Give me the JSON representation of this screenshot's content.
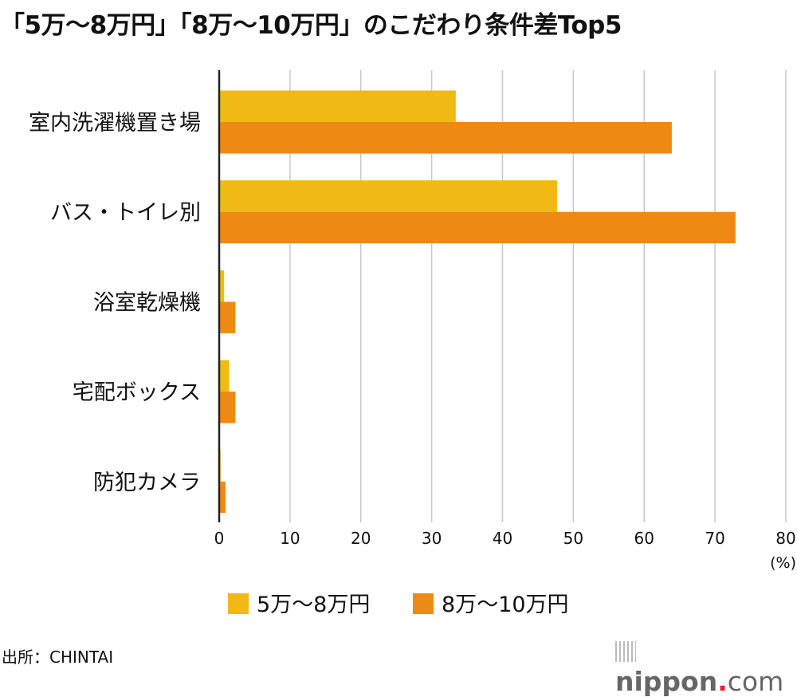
{
  "chart_data": {
    "type": "bar",
    "orientation": "horizontal",
    "title": "「5万〜8万円」「8万〜10万円」のこだわり条件差Top5",
    "categories": [
      "室内洗濯機置き場",
      "バス・トイレ別",
      "浴室乾燥機",
      "宅配ボックス",
      "防犯カメラ"
    ],
    "series": [
      {
        "name": "5万〜8万円",
        "color": "#f0b914",
        "values": [
          33.4,
          47.7,
          0.7,
          1.4,
          0.2
        ]
      },
      {
        "name": "8万〜10万円",
        "color": "#ee8a13",
        "values": [
          63.9,
          72.9,
          2.3,
          2.3,
          0.9
        ]
      }
    ],
    "xlim": [
      0,
      80
    ],
    "xticks": [
      "0",
      "10",
      "20",
      "30",
      "40",
      "50",
      "60",
      "70",
      "80"
    ],
    "xunit": "(%)",
    "grid": true,
    "legend_placement": "bottom"
  },
  "source": "出所：CHINTAI",
  "logo": {
    "name": "nippon",
    "dot": ".",
    "tld": "com"
  }
}
